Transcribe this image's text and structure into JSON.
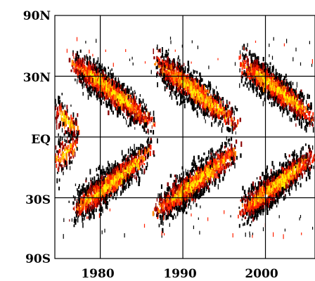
{
  "chart_data": {
    "type": "heatmap",
    "title": "",
    "xlabel": "",
    "ylabel": "",
    "x_range": [
      1974.5,
      2006
    ],
    "y_range": [
      -90,
      90
    ],
    "grid": true,
    "x_ticks": [
      {
        "value": 1980,
        "label": "1980"
      },
      {
        "value": 1990,
        "label": "1990"
      },
      {
        "value": 2000,
        "label": "2000"
      }
    ],
    "y_ticks": [
      {
        "value": 90,
        "label": "90N"
      },
      {
        "value": 30,
        "label": "30N"
      },
      {
        "value": 0,
        "label": "EQ"
      },
      {
        "value": -30,
        "label": "30S"
      },
      {
        "value": -90,
        "label": "90S"
      }
    ],
    "y_scale": "sine_latitude",
    "colors": {
      "low": "#000000",
      "mid_low": "#8b0000",
      "mid": "#ff2200",
      "mid_high": "#ff8800",
      "high": "#ffee00",
      "grid": "#000000"
    },
    "wings": [
      {
        "cycle": 21,
        "hemisphere": "N",
        "start_year": 1976.5,
        "end_year": 1986.5,
        "start_lat": 38,
        "end_lat": 5
      },
      {
        "cycle": 21,
        "hemisphere": "S",
        "start_year": 1976.5,
        "end_year": 1986.5,
        "start_lat": -38,
        "end_lat": -5
      },
      {
        "cycle": 22,
        "hemisphere": "N",
        "start_year": 1986.5,
        "end_year": 1996.8,
        "start_lat": 38,
        "end_lat": 5
      },
      {
        "cycle": 22,
        "hemisphere": "S",
        "start_year": 1986.5,
        "end_year": 1996.8,
        "start_lat": -38,
        "end_lat": -5
      },
      {
        "cycle": 23,
        "hemisphere": "N",
        "start_year": 1996.8,
        "end_year": 2006,
        "start_lat": 38,
        "end_lat": 8
      },
      {
        "cycle": 23,
        "hemisphere": "S",
        "start_year": 1996.8,
        "end_year": 2006,
        "start_lat": -38,
        "end_lat": -8
      },
      {
        "cycle": 20,
        "hemisphere": "N",
        "start_year": 1974.5,
        "end_year": 1977,
        "start_lat": 12,
        "end_lat": 4
      },
      {
        "cycle": 20,
        "hemisphere": "S",
        "start_year": 1974.5,
        "end_year": 1977,
        "start_lat": -12,
        "end_lat": -4
      }
    ]
  }
}
